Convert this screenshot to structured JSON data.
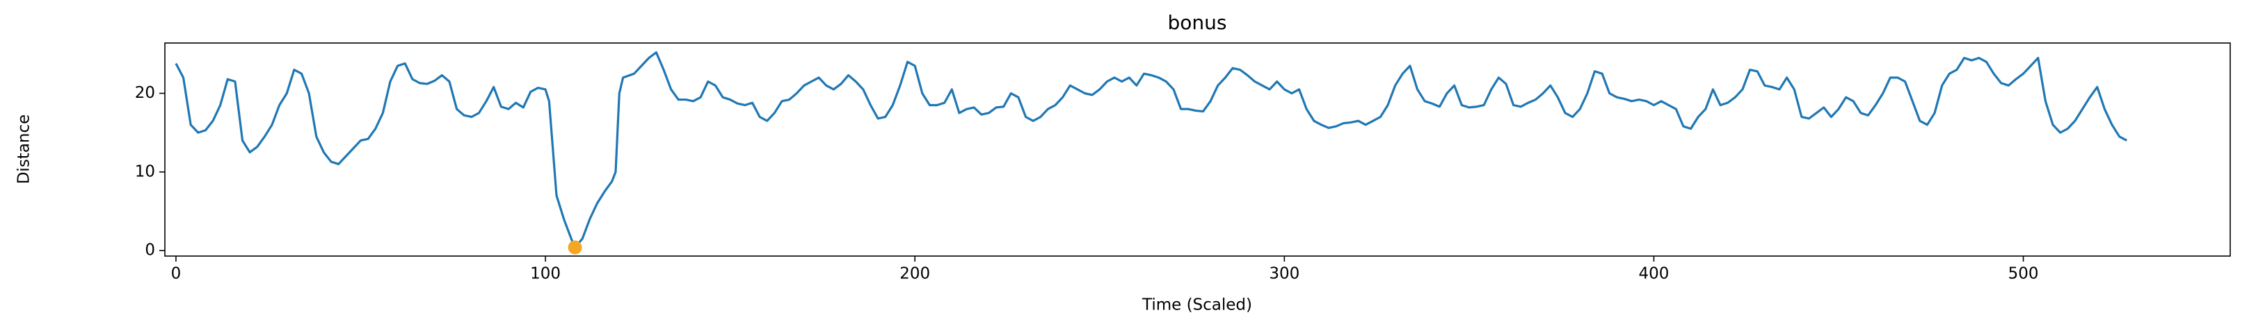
{
  "chart_data": {
    "type": "line",
    "title": "bonus",
    "xlabel": "Time (Scaled)",
    "ylabel": "Distance",
    "color": "#1f77b4",
    "x": [
      0,
      2,
      4,
      6,
      8,
      10,
      12,
      14,
      16,
      18,
      20,
      22,
      24,
      26,
      28,
      30,
      32,
      34,
      36,
      38,
      40,
      42,
      44,
      46,
      48,
      50,
      52,
      54,
      56,
      58,
      60,
      62,
      64,
      66,
      68,
      70,
      72,
      74,
      76,
      78,
      80,
      82,
      84,
      86,
      88,
      90,
      92,
      94,
      96,
      98,
      100,
      101,
      102,
      103,
      105,
      107,
      108,
      110,
      112,
      114,
      116,
      118,
      119,
      120,
      121,
      124,
      126,
      128,
      130,
      132,
      134,
      136,
      138,
      140,
      142,
      144,
      146,
      148,
      150,
      152,
      154,
      156,
      158,
      160,
      162,
      164,
      166,
      168,
      170,
      172,
      174,
      176,
      178,
      180,
      182,
      184,
      186,
      188,
      190,
      192,
      194,
      196,
      198,
      200,
      202,
      204,
      206,
      208,
      210,
      212,
      214,
      216,
      218,
      220,
      222,
      224,
      226,
      228,
      230,
      232,
      234,
      236,
      238,
      240,
      242,
      244,
      246,
      248,
      250,
      252,
      254,
      256,
      258,
      260,
      262,
      264,
      266,
      268,
      270,
      272,
      274,
      276,
      278,
      280,
      282,
      284,
      286,
      288,
      290,
      292,
      294,
      296,
      298,
      300,
      302,
      304,
      306,
      308,
      310,
      312,
      314,
      316,
      318,
      320,
      322,
      324,
      326,
      328,
      330,
      332,
      334,
      336,
      338,
      340,
      342,
      344,
      346,
      348,
      350,
      352,
      354,
      356,
      358,
      360,
      362,
      364,
      366,
      368,
      370,
      372,
      374,
      376,
      378,
      380,
      382,
      384,
      386,
      388,
      390,
      392,
      394,
      396,
      398,
      400,
      402,
      404,
      406,
      408,
      410,
      412,
      414,
      416,
      418,
      420,
      422,
      424,
      426,
      428,
      430,
      432,
      434,
      436,
      438,
      440,
      442,
      444,
      446,
      448,
      450,
      452,
      454,
      456,
      458,
      460,
      462,
      464,
      466,
      468,
      470,
      472,
      474,
      476,
      478,
      480,
      482,
      484,
      486,
      488,
      490,
      492,
      494,
      496,
      498,
      500,
      502,
      504,
      506,
      508,
      510,
      512,
      514,
      516,
      518,
      520,
      522,
      524,
      526,
      528
    ],
    "values": [
      23.8,
      22,
      16,
      15,
      15.3,
      16.5,
      18.5,
      21.8,
      21.5,
      14,
      12.5,
      13.2,
      14.5,
      16,
      18.5,
      20,
      23,
      22.5,
      20,
      14.5,
      12.5,
      11.3,
      11,
      12,
      13,
      14,
      14.2,
      15.5,
      17.5,
      21.5,
      23.5,
      23.8,
      21.8,
      21.3,
      21.2,
      21.6,
      22.3,
      21.5,
      18,
      17.2,
      17,
      17.5,
      19,
      20.8,
      18.3,
      18,
      18.8,
      18.2,
      20.2,
      20.7,
      20.5,
      19,
      13,
      7,
      4,
      1.5,
      0.4,
      1.5,
      4,
      6,
      7.5,
      8.8,
      10,
      20,
      22,
      22.5,
      23.5,
      24.5,
      25.2,
      23,
      20.5,
      19.2,
      19.2,
      19,
      19.5,
      21.5,
      21,
      19.5,
      19.2,
      18.7,
      18.5,
      18.8,
      17,
      16.5,
      17.5,
      19,
      19.2,
      20,
      21,
      21.5,
      22,
      21,
      20.5,
      21.2,
      22.3,
      21.5,
      20.5,
      18.5,
      16.8,
      17,
      18.5,
      21,
      24,
      23.5,
      20,
      18.5,
      18.5,
      18.8,
      20.5,
      17.5,
      18,
      18.2,
      17.3,
      17.5,
      18.2,
      18.3,
      20,
      19.5,
      17,
      16.5,
      17,
      18,
      18.5,
      19.5,
      21,
      20.5,
      20,
      19.8,
      20.5,
      21.5,
      22,
      21.5,
      22,
      21,
      22.5,
      22.3,
      22,
      21.5,
      20.5,
      18,
      18,
      17.8,
      17.7,
      19,
      21,
      22,
      23.2,
      23,
      22.3,
      21.5,
      21,
      20.5,
      21.5,
      20.5,
      20,
      20.5,
      18,
      16.5,
      16,
      15.6,
      15.8,
      16.2,
      16.3,
      16.5,
      16,
      16.5,
      17,
      18.5,
      21,
      22.5,
      23.5,
      20.5,
      19,
      18.7,
      18.3,
      20,
      21,
      18.5,
      18.2,
      18.3,
      18.5,
      20.5,
      22,
      21.2,
      18.5,
      18.3,
      18.8,
      19.2,
      20,
      21,
      19.5,
      17.5,
      17,
      18,
      20,
      22.8,
      22.5,
      20,
      19.5,
      19.3,
      19,
      19.2,
      19,
      18.5,
      19,
      18.5,
      18,
      15.8,
      15.5,
      17,
      18,
      20.5,
      18.5,
      18.8,
      19.5,
      20.5,
      23,
      22.8,
      21,
      20.8,
      20.5,
      22,
      20.5,
      17,
      16.8,
      17.5,
      18.2,
      17,
      18,
      19.5,
      19,
      17.5,
      17.2,
      18.5,
      20,
      22,
      22,
      21.5,
      19,
      16.5,
      16,
      17.5,
      21,
      22.5,
      23,
      24.5,
      24.2,
      24.5,
      24,
      22.5,
      21.3,
      21,
      21.8,
      22.5,
      23.5,
      24.5,
      19,
      16,
      15,
      15.5,
      16.5,
      18,
      19.5,
      20.8,
      18,
      16,
      14.5,
      14
    ],
    "highlight": {
      "x": [
        108
      ],
      "values": [
        0.4
      ],
      "color": "#f5a623"
    },
    "xlim": [
      -3,
      556
    ],
    "ylim": [
      -0.7,
      26.4
    ],
    "xticks": [
      0,
      100,
      200,
      300,
      400,
      500
    ],
    "yticks": [
      0,
      10,
      20
    ]
  }
}
